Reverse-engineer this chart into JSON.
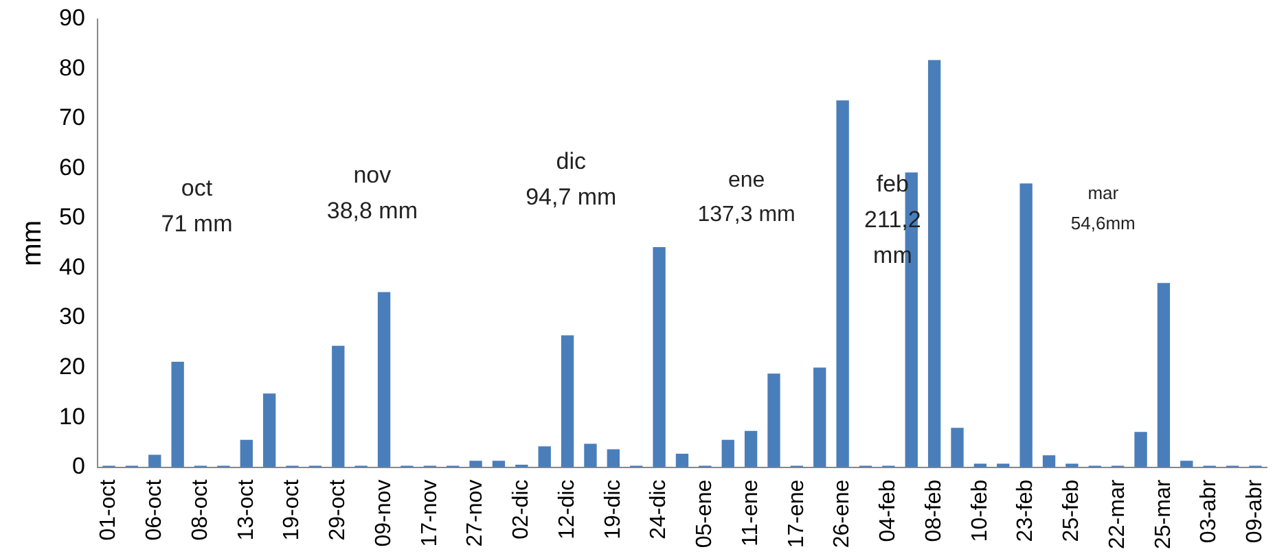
{
  "chart_data": {
    "type": "bar",
    "ylabel": "mm",
    "categories": [
      "01-oct",
      null,
      "06-oct",
      null,
      "08-oct",
      null,
      "13-oct",
      null,
      "19-oct",
      null,
      "29-oct",
      null,
      "09-nov",
      null,
      "17-nov",
      null,
      "27-nov",
      null,
      "02-dic",
      null,
      "12-dic",
      null,
      "19-dic",
      null,
      "24-dic",
      null,
      "05-ene",
      null,
      "11-ene",
      null,
      "17-ene",
      null,
      "26-ene",
      null,
      "04-feb",
      null,
      "08-feb",
      null,
      "10-feb",
      null,
      "23-feb",
      null,
      "25-feb",
      null,
      "22-mar",
      null,
      "25-mar",
      null,
      "03-abr",
      null,
      "09-abr"
    ],
    "values": [
      0.3,
      0.3,
      2.5,
      21.2,
      0.3,
      0.3,
      5.5,
      14.8,
      0.3,
      0.3,
      24.4,
      0.3,
      35.2,
      0.3,
      0.3,
      0.3,
      1.3,
      1.3,
      0.5,
      4.2,
      26.5,
      4.7,
      3.6,
      0.3,
      44.2,
      2.7,
      0.3,
      5.5,
      7.3,
      18.8,
      0.3,
      20,
      73.7,
      0.3,
      0.3,
      59.2,
      81.8,
      7.9,
      0.7,
      0.7,
      57,
      2.4,
      0.7,
      0.3,
      0.3,
      7.1,
      37,
      1.3,
      0.3,
      0.3,
      0.3
    ],
    "color": "#4a7ebb",
    "ylim": [
      0,
      90
    ],
    "yticks": [
      0,
      10,
      20,
      30,
      40,
      50,
      60,
      70,
      80,
      90
    ],
    "grid": false,
    "legend": false,
    "annotations": [
      "oct\n71 mm",
      "nov\n38,8 mm",
      "dic\n94,7 mm",
      "ene\n137,3 mm",
      "feb\n211,2\nmm",
      "mar\n54,6mm"
    ]
  }
}
